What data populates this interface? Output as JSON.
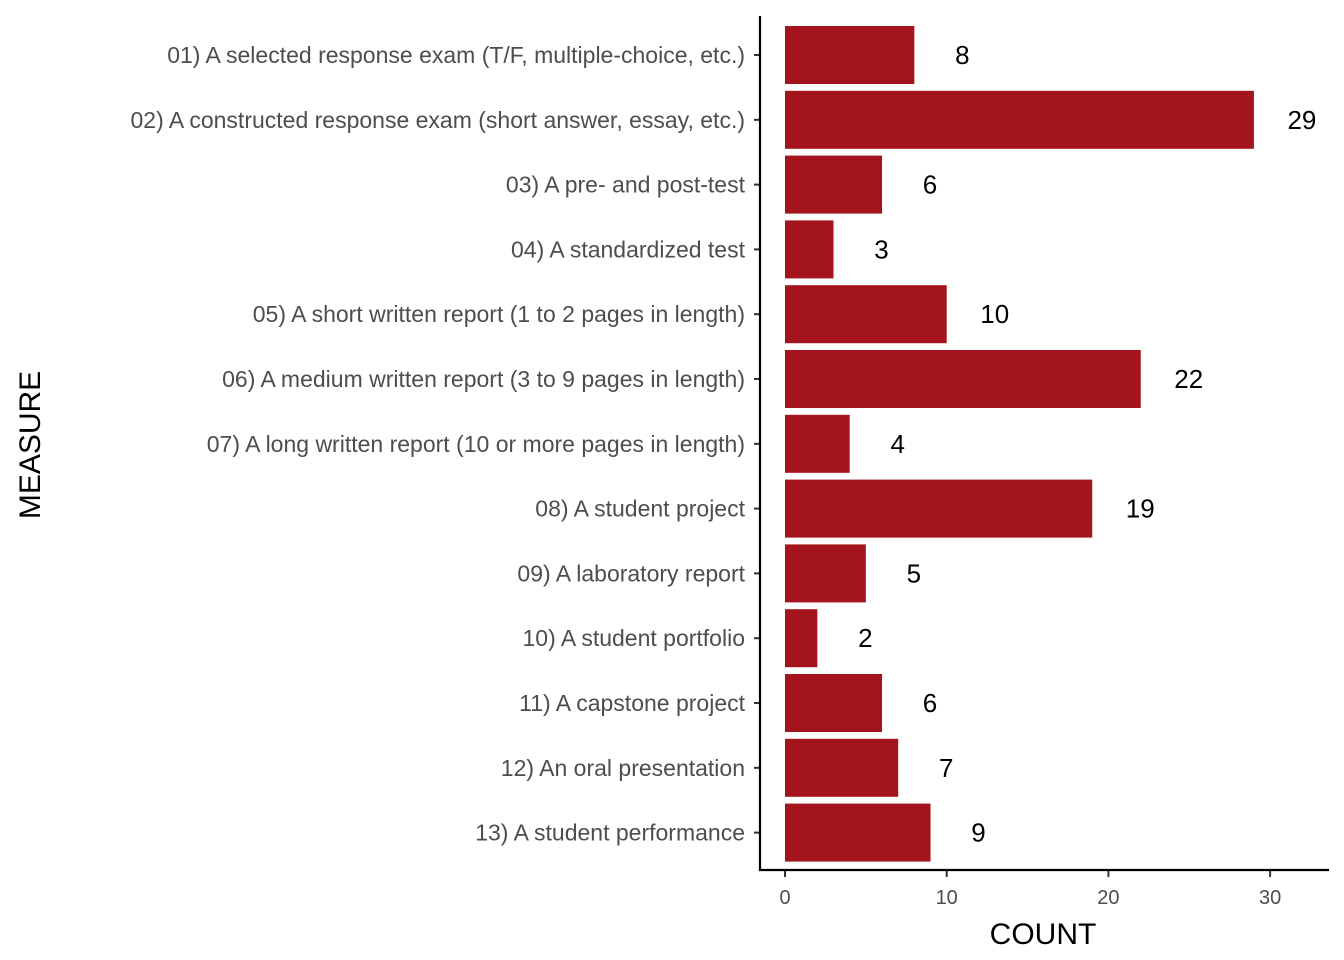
{
  "chart_data": {
    "type": "bar",
    "orientation": "horizontal",
    "categories": [
      "01) A selected response exam (T/F, multiple-choice, etc.)",
      "02) A constructed response exam (short answer, essay, etc.)",
      "03) A pre- and post-test",
      "04) A standardized test",
      "05) A short written report (1 to 2 pages in length)",
      "06) A medium written report (3 to 9 pages in length)",
      "07) A long written report (10 or more pages in length)",
      "08) A student project",
      "09) A laboratory report",
      "10) A student portfolio",
      "11) A capstone project",
      "12) An oral presentation",
      "13) A student performance"
    ],
    "values": [
      8,
      29,
      6,
      3,
      10,
      22,
      4,
      19,
      5,
      2,
      6,
      7,
      9
    ],
    "data_labels": [
      "8",
      "29",
      "6",
      "3",
      "10",
      "22",
      "4",
      "19",
      "5",
      "2",
      "6",
      "7",
      "9"
    ],
    "xlabel": "COUNT",
    "ylabel": "MEASURE",
    "xlim": [
      0,
      32
    ],
    "x_ticks": [
      0,
      10,
      20,
      30
    ],
    "x_tick_labels": [
      "0",
      "10",
      "20",
      "30"
    ],
    "bar_color": "#A3141C",
    "grid": false,
    "legend": "none"
  }
}
